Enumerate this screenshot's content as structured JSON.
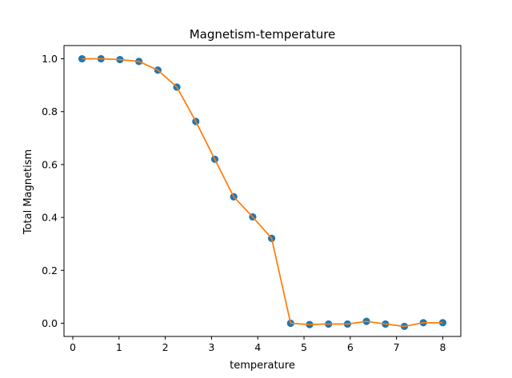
{
  "chart_data": {
    "type": "line",
    "title": "Magnetism-temperature",
    "xlabel": "temperature",
    "ylabel": "Total Magnetism",
    "xlim": [
      -0.19,
      8.39
    ],
    "ylim": [
      -0.05,
      1.05
    ],
    "xticks": [
      0,
      1,
      2,
      3,
      4,
      5,
      6,
      7,
      8
    ],
    "xtick_labels": [
      "0",
      "1",
      "2",
      "3",
      "4",
      "5",
      "6",
      "7",
      "8"
    ],
    "yticks": [
      0.0,
      0.2,
      0.4,
      0.6,
      0.8,
      1.0
    ],
    "ytick_labels": [
      "0.0",
      "0.2",
      "0.4",
      "0.6",
      "0.8",
      "1.0"
    ],
    "grid": false,
    "x": [
      0.2,
      0.61,
      1.02,
      1.43,
      1.84,
      2.25,
      2.66,
      3.07,
      3.48,
      3.89,
      4.3,
      4.71,
      5.12,
      5.53,
      5.94,
      6.35,
      6.76,
      7.17,
      7.58,
      8.0
    ],
    "series": [
      {
        "kind": "scatter",
        "color": "#1f77b4",
        "values": [
          1.0,
          1.0,
          0.997,
          0.99,
          0.957,
          0.893,
          0.763,
          0.62,
          0.478,
          0.402,
          0.321,
          0.0,
          -0.005,
          -0.003,
          -0.003,
          0.007,
          -0.003,
          -0.012,
          0.002,
          0.002
        ]
      },
      {
        "kind": "line",
        "color": "#ff7f0e",
        "values": [
          1.0,
          1.0,
          0.997,
          0.99,
          0.957,
          0.893,
          0.763,
          0.62,
          0.478,
          0.402,
          0.321,
          0.0,
          -0.005,
          -0.003,
          -0.003,
          0.007,
          -0.003,
          -0.012,
          0.002,
          0.002
        ]
      }
    ]
  }
}
